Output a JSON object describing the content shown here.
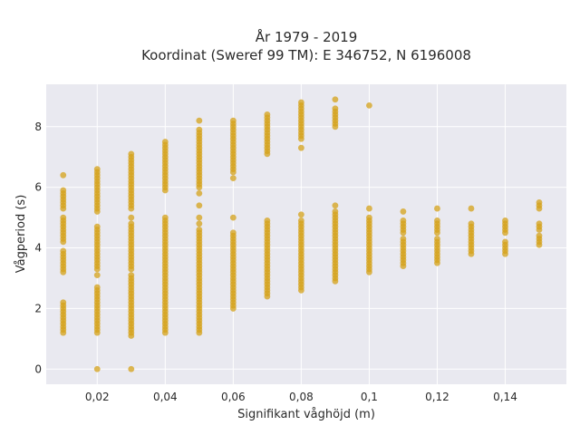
{
  "chart_data": {
    "type": "scatter",
    "title": "År 1979 - 2019",
    "subtitle": "Koordinat (Sweref 99 TM): E 346752, N 6196008",
    "xlabel": "Signifikant våghöjd (m)",
    "ylabel": "Vågperiod (s)",
    "xlim": [
      0.005,
      0.158
    ],
    "ylim": [
      -0.5,
      9.4
    ],
    "x_ticks": [
      0.02,
      0.04,
      0.06,
      0.08,
      0.1,
      0.12,
      0.14
    ],
    "x_tick_labels": [
      "0,02",
      "0,04",
      "0,06",
      "0,08",
      "0,1",
      "0,12",
      "0,14"
    ],
    "y_ticks": [
      0,
      2,
      4,
      6,
      8
    ],
    "y_tick_labels": [
      "0",
      "2",
      "4",
      "6",
      "8"
    ],
    "grid": true,
    "background": "#e9e9f0",
    "marker_color": "#d4a21a",
    "columns": [
      {
        "x": 0.01,
        "segments": [
          [
            1.2,
            2.2
          ],
          [
            3.2,
            3.9
          ],
          [
            4.2,
            5.0
          ],
          [
            5.3,
            5.9
          ]
        ],
        "extra": [
          6.4
        ]
      },
      {
        "x": 0.02,
        "segments": [
          [
            1.2,
            2.7
          ],
          [
            3.3,
            4.7
          ],
          [
            5.2,
            6.6
          ]
        ],
        "extra": [
          0,
          3.1
        ]
      },
      {
        "x": 0.03,
        "segments": [
          [
            1.1,
            3.0
          ],
          [
            3.3,
            4.8
          ],
          [
            5.3,
            7.0
          ]
        ],
        "extra": [
          0,
          3.1,
          5.0,
          7.1
        ]
      },
      {
        "x": 0.04,
        "segments": [
          [
            1.2,
            4.9
          ],
          [
            5.9,
            7.5
          ]
        ],
        "extra": [
          5.0
        ]
      },
      {
        "x": 0.05,
        "segments": [
          [
            1.2,
            4.6
          ],
          [
            6.0,
            7.9
          ]
        ],
        "extra": [
          4.8,
          5.0,
          5.4,
          5.8,
          8.2
        ]
      },
      {
        "x": 0.06,
        "segments": [
          [
            2.0,
            4.5
          ],
          [
            6.5,
            8.2
          ]
        ],
        "extra": [
          5.0,
          6.3
        ]
      },
      {
        "x": 0.07,
        "segments": [
          [
            2.4,
            4.8
          ],
          [
            7.1,
            8.3
          ]
        ],
        "extra": [
          4.9,
          8.4
        ]
      },
      {
        "x": 0.08,
        "segments": [
          [
            2.6,
            4.9
          ],
          [
            7.6,
            8.8
          ]
        ],
        "extra": [
          5.1,
          7.3
        ]
      },
      {
        "x": 0.09,
        "segments": [
          [
            2.9,
            5.2
          ],
          [
            8.0,
            8.6
          ]
        ],
        "extra": [
          5.4,
          8.9
        ]
      },
      {
        "x": 0.1,
        "segments": [
          [
            3.2,
            5.0
          ]
        ],
        "extra": [
          5.3,
          8.7
        ]
      },
      {
        "x": 0.11,
        "segments": [
          [
            3.4,
            4.3
          ],
          [
            4.5,
            4.9
          ]
        ],
        "extra": [
          5.2
        ]
      },
      {
        "x": 0.12,
        "segments": [
          [
            3.5,
            4.3
          ],
          [
            4.5,
            4.9
          ]
        ],
        "extra": [
          5.3
        ]
      },
      {
        "x": 0.13,
        "segments": [
          [
            3.8,
            4.8
          ]
        ],
        "extra": [
          5.3
        ]
      },
      {
        "x": 0.14,
        "segments": [
          [
            3.8,
            4.2
          ],
          [
            4.5,
            4.8
          ]
        ],
        "extra": [
          4.9
        ]
      },
      {
        "x": 0.15,
        "segments": [
          [
            4.1,
            4.4
          ],
          [
            4.6,
            4.8
          ],
          [
            5.3,
            5.5
          ]
        ],
        "extra": []
      }
    ]
  }
}
